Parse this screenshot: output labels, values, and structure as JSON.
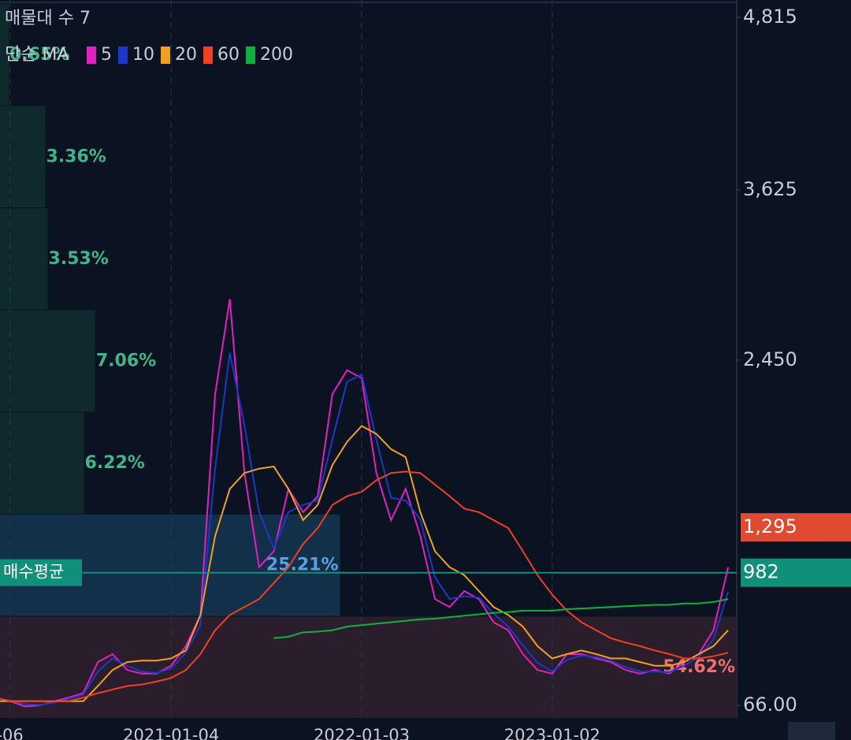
{
  "chart_data": {
    "type": "line",
    "title": "매물대 수 7",
    "legend_title": "단순 MA",
    "categories": [
      null,
      "-06",
      null,
      null,
      null,
      null,
      null,
      null,
      null,
      null,
      null,
      null,
      "2021-01-04",
      null,
      null,
      null,
      null,
      null,
      null,
      null,
      null,
      null,
      null,
      null,
      null,
      "2022-01-03",
      null,
      null,
      null,
      null,
      null,
      null,
      null,
      null,
      null,
      null,
      null,
      null,
      "2023-01-02",
      null,
      null,
      null,
      null,
      null,
      null,
      null,
      null,
      null,
      null,
      null,
      null
    ],
    "series": [
      {
        "name": "5",
        "color": "#e020c0",
        "values": [
          120,
          95,
          60,
          66,
          95,
          120,
          150,
          365,
          420,
          310,
          285,
          285,
          340,
          475,
          690,
          2215,
          2870,
          1670,
          1020,
          1130,
          1560,
          1400,
          1510,
          2215,
          2380,
          2325,
          1670,
          1345,
          1560,
          1235,
          800,
          745,
          855,
          800,
          640,
          585,
          420,
          310,
          285,
          420,
          420,
          390,
          365,
          310,
          285,
          310,
          285,
          365,
          420,
          585,
          1020
        ]
      },
      {
        "name": "10",
        "color": "#1c38c8",
        "values": [
          115,
          100,
          75,
          70,
          85,
          110,
          140,
          300,
          390,
          340,
          300,
          290,
          320,
          430,
          620,
          1700,
          2500,
          2000,
          1400,
          1150,
          1400,
          1450,
          1480,
          1900,
          2300,
          2350,
          1900,
          1500,
          1480,
          1350,
          950,
          800,
          820,
          810,
          700,
          610,
          480,
          360,
          300,
          380,
          410,
          400,
          375,
          330,
          300,
          300,
          295,
          340,
          400,
          520,
          850
        ]
      },
      {
        "name": "20",
        "color": "#f0a020",
        "values": [
          95,
          95,
          95,
          95,
          95,
          95,
          95,
          200,
          310,
          365,
          375,
          375,
          390,
          445,
          690,
          1235,
          1560,
          1670,
          1700,
          1715,
          1560,
          1345,
          1450,
          1725,
          1885,
          1995,
          1940,
          1835,
          1780,
          1400,
          1130,
          1020,
          965,
          855,
          745,
          690,
          610,
          475,
          390,
          420,
          445,
          420,
          390,
          390,
          365,
          340,
          340,
          365,
          420,
          475,
          585
        ]
      },
      {
        "name": "60",
        "color": "#f04020",
        "values": [
          120,
          95,
          95,
          95,
          95,
          95,
          120,
          150,
          175,
          200,
          210,
          230,
          255,
          310,
          420,
          585,
          690,
          745,
          800,
          910,
          1020,
          1180,
          1290,
          1450,
          1510,
          1540,
          1620,
          1670,
          1680,
          1670,
          1590,
          1510,
          1425,
          1400,
          1345,
          1290,
          1130,
          965,
          830,
          720,
          640,
          585,
          530,
          500,
          475,
          445,
          420,
          390,
          390,
          405,
          430
        ]
      },
      {
        "name": "200",
        "color": "#10b040",
        "values": [
          null,
          null,
          null,
          null,
          null,
          null,
          null,
          null,
          null,
          null,
          null,
          null,
          null,
          null,
          null,
          null,
          null,
          null,
          null,
          530,
          540,
          570,
          575,
          585,
          610,
          620,
          630,
          640,
          650,
          660,
          665,
          675,
          685,
          695,
          705,
          710,
          720,
          720,
          720,
          730,
          735,
          740,
          745,
          750,
          755,
          760,
          760,
          770,
          770,
          780,
          800
        ]
      }
    ],
    "ylim": [
      -26,
      4935
    ],
    "yticks": [
      {
        "value": 4815,
        "label": "4,815"
      },
      {
        "value": 3625,
        "label": "3,625"
      },
      {
        "value": 2450,
        "label": "2,450"
      },
      {
        "value": 66,
        "label": "66.00"
      }
    ],
    "volume_profile": {
      "values": [
        0.65,
        3.36,
        3.53,
        7.06,
        6.22,
        25.21,
        54.62
      ],
      "value_labels": [
        "0.65%",
        "3.36%",
        "3.53%",
        "7.06%",
        "6.22%",
        "25.21%",
        "54.62%"
      ],
      "colors": [
        "#0f2a2c",
        "#0f2a2c",
        "#0f2a2c",
        "#0f2a2c",
        "#0f2a2c",
        "#12304a",
        "#2a1e2c"
      ],
      "label_colors": [
        "#3fb58a",
        "#3fb58a",
        "#3fb58a",
        "#3fb58a",
        "#3fb58a",
        "#5aa0e0",
        "#f07070"
      ]
    },
    "current_price": {
      "value": 1295,
      "label": "1,295",
      "color": "#e04a30"
    },
    "average_price": {
      "value": 982,
      "label": "982",
      "name": "매수평균",
      "color": "#10907a"
    }
  }
}
